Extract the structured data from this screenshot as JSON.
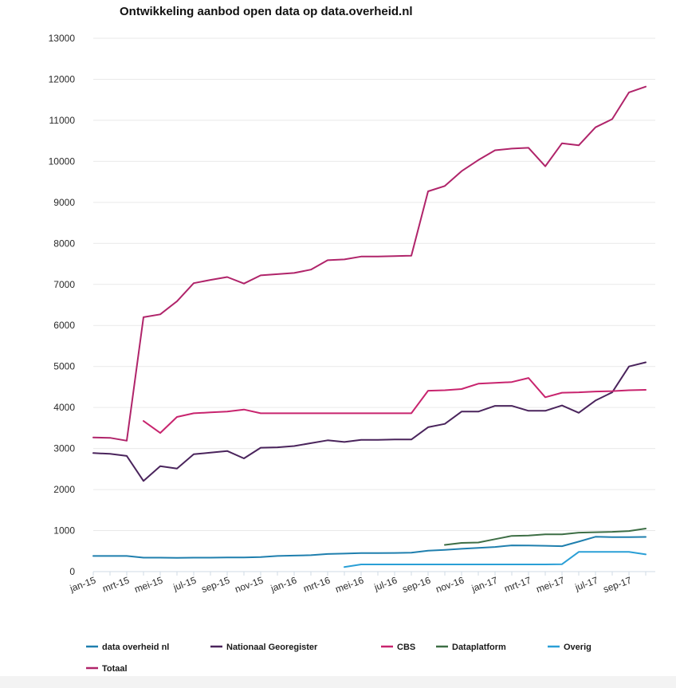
{
  "chart_data": {
    "type": "line",
    "title": "Ontwikkeling aanbod open data op data.overheid.nl",
    "xlabel": "",
    "ylabel": "",
    "ylim": [
      0,
      13000
    ],
    "yticks": [
      0,
      1000,
      2000,
      3000,
      4000,
      5000,
      6000,
      7000,
      8000,
      9000,
      10000,
      11000,
      12000,
      13000
    ],
    "xtick_labels": [
      "jan-15",
      "mrt-15",
      "mei-15",
      "jul-15",
      "sep-15",
      "nov-15",
      "jan-16",
      "mrt-16",
      "mei-16",
      "jul-16",
      "sep-16",
      "nov-16",
      "jan-17",
      "mrt-17",
      "mei-17",
      "jul-17",
      "sep-17"
    ],
    "x": [
      "jan-15",
      "feb-15",
      "mrt-15",
      "apr-15",
      "mei-15",
      "jun-15",
      "jul-15",
      "aug-15",
      "sep-15",
      "okt-15",
      "nov-15",
      "dec-15",
      "jan-16",
      "feb-16",
      "mrt-16",
      "apr-16",
      "mei-16",
      "jun-16",
      "jul-16",
      "aug-16",
      "sep-16",
      "okt-16",
      "nov-16",
      "dec-16",
      "jan-17",
      "feb-17",
      "mrt-17",
      "apr-17",
      "mei-17",
      "jun-17",
      "jul-17",
      "aug-17",
      "sep-17",
      "okt-17"
    ],
    "grid": true,
    "legend_position": "bottom",
    "series": [
      {
        "name": "data overheid nl",
        "color": "#1f7fae",
        "values": [
          380,
          380,
          380,
          340,
          340,
          335,
          340,
          340,
          345,
          345,
          355,
          380,
          390,
          400,
          430,
          440,
          450,
          450,
          455,
          460,
          510,
          530,
          555,
          580,
          600,
          640,
          635,
          630,
          620,
          730,
          850,
          840,
          840,
          845
        ]
      },
      {
        "name": "Nationaal Georegister",
        "color": "#4a245c",
        "values": [
          2890,
          2870,
          2820,
          2210,
          2570,
          2510,
          2860,
          2900,
          2940,
          2760,
          3020,
          3030,
          3060,
          3130,
          3200,
          3160,
          3210,
          3210,
          3220,
          3220,
          3520,
          3600,
          3900,
          3900,
          4040,
          4040,
          3920,
          3920,
          4050,
          3870,
          4170,
          4370,
          5000,
          5100
        ]
      },
      {
        "name": "CBS",
        "color": "#c8246e",
        "values": [
          null,
          null,
          null,
          3670,
          3380,
          3770,
          3860,
          3880,
          3900,
          3950,
          3860,
          3860,
          3860,
          3860,
          3860,
          3860,
          3860,
          3860,
          3860,
          3860,
          4410,
          4420,
          4450,
          4580,
          4600,
          4620,
          4720,
          4250,
          4360,
          4370,
          4390,
          4400,
          4420,
          4430
        ]
      },
      {
        "name": "Dataplatform",
        "color": "#3d6e45",
        "values": [
          null,
          null,
          null,
          null,
          null,
          null,
          null,
          null,
          null,
          null,
          null,
          null,
          null,
          null,
          null,
          null,
          null,
          null,
          null,
          null,
          null,
          650,
          700,
          710,
          790,
          870,
          880,
          910,
          910,
          950,
          960,
          970,
          990,
          1050
        ]
      },
      {
        "name": "Overig",
        "color": "#2a9fd6",
        "values": [
          null,
          null,
          null,
          null,
          null,
          null,
          null,
          null,
          null,
          null,
          null,
          null,
          null,
          null,
          null,
          110,
          175,
          175,
          175,
          175,
          175,
          175,
          175,
          175,
          175,
          175,
          175,
          175,
          180,
          480,
          480,
          480,
          480,
          420
        ]
      },
      {
        "name": "Totaal",
        "color": "#b0246a",
        "values": [
          3270,
          3260,
          3190,
          6200,
          6270,
          6590,
          7030,
          7110,
          7180,
          7020,
          7220,
          7250,
          7280,
          7360,
          7590,
          7610,
          7680,
          7680,
          7690,
          7700,
          9270,
          9400,
          9760,
          10030,
          10270,
          10310,
          10330,
          9880,
          10440,
          10390,
          10830,
          11030,
          11680,
          11820
        ]
      }
    ]
  }
}
